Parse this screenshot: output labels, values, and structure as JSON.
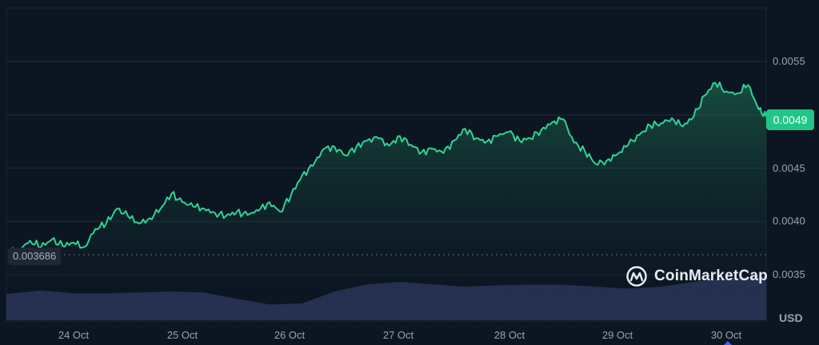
{
  "chart_data": {
    "type": "area",
    "title": "",
    "xlabel": "",
    "ylabel": "USD",
    "currency": "USD",
    "ylim": [
      0.0032,
      0.006
    ],
    "grid": true,
    "legend": "none",
    "y_ticks": [
      "0.0055",
      "0.0045",
      "0.0040",
      "0.0035"
    ],
    "x_ticks": [
      "24 Oct",
      "25 Oct",
      "26 Oct",
      "27 Oct",
      "28 Oct",
      "29 Oct",
      "30 Oct"
    ],
    "current_price": "0.0049",
    "baseline_price": "0.003686",
    "colors": {
      "line": "#2fd393",
      "price_tag": "#21c587",
      "volume": "#2a3458",
      "background": "#0c1522",
      "grid": "#222c3a"
    },
    "series": [
      {
        "name": "Price",
        "x_days_from_24oct": [
          -0.6,
          -0.5,
          -0.4,
          -0.3,
          -0.2,
          -0.1,
          0.0,
          0.1,
          0.2,
          0.3,
          0.4,
          0.5,
          0.6,
          0.7,
          0.8,
          0.9,
          1.0,
          1.1,
          1.2,
          1.3,
          1.4,
          1.5,
          1.6,
          1.7,
          1.8,
          1.9,
          2.0,
          2.1,
          2.2,
          2.3,
          2.4,
          2.5,
          2.6,
          2.7,
          2.8,
          2.9,
          3.0,
          3.1,
          3.2,
          3.3,
          3.4,
          3.5,
          3.6,
          3.7,
          3.8,
          3.9,
          4.0,
          4.1,
          4.2,
          4.3,
          4.4,
          4.5,
          4.6,
          4.7,
          4.8,
          4.9,
          5.0,
          5.1,
          5.2,
          5.3,
          5.4,
          5.5,
          5.6,
          5.7,
          5.8,
          5.9,
          6.0,
          6.1,
          6.2,
          6.3,
          6.4
        ],
        "values": [
          0.0037,
          0.00374,
          0.00382,
          0.00376,
          0.00383,
          0.00377,
          0.0038,
          0.00376,
          0.00393,
          0.00398,
          0.00412,
          0.00405,
          0.00398,
          0.00403,
          0.00412,
          0.00426,
          0.00418,
          0.00414,
          0.00412,
          0.00408,
          0.00405,
          0.00409,
          0.00406,
          0.0041,
          0.00418,
          0.00409,
          0.00425,
          0.00443,
          0.00452,
          0.00468,
          0.0047,
          0.00462,
          0.0047,
          0.00476,
          0.00478,
          0.00471,
          0.0048,
          0.00472,
          0.00465,
          0.00468,
          0.00464,
          0.00476,
          0.00487,
          0.00478,
          0.00475,
          0.0048,
          0.00484,
          0.00476,
          0.00478,
          0.00486,
          0.00493,
          0.00496,
          0.00474,
          0.00466,
          0.00454,
          0.00457,
          0.00463,
          0.00472,
          0.00481,
          0.0049,
          0.00492,
          0.00497,
          0.00489,
          0.00498,
          0.00518,
          0.0053,
          0.00522,
          0.0052,
          0.00528,
          0.00505,
          0.00498
        ]
      },
      {
        "name": "Volume",
        "x_days_from_24oct": [
          -0.6,
          -0.3,
          0.0,
          0.3,
          0.6,
          0.9,
          1.2,
          1.5,
          1.8,
          2.1,
          2.4,
          2.7,
          3.0,
          3.3,
          3.6,
          3.9,
          4.2,
          4.5,
          4.8,
          5.1,
          5.4,
          5.7,
          6.0,
          6.3,
          6.45
        ],
        "relative_height": [
          0.55,
          0.62,
          0.56,
          0.56,
          0.58,
          0.6,
          0.58,
          0.45,
          0.33,
          0.35,
          0.6,
          0.75,
          0.8,
          0.75,
          0.7,
          0.73,
          0.74,
          0.74,
          0.7,
          0.66,
          0.7,
          0.8,
          0.88,
          0.92,
          0.92
        ]
      }
    ]
  },
  "axis": {
    "y_labels": [
      "0.0055",
      "0.0045",
      "0.0040",
      "0.0035"
    ],
    "x_labels": [
      "24 Oct",
      "25 Oct",
      "26 Oct",
      "27 Oct",
      "28 Oct",
      "29 Oct",
      "30 Oct"
    ],
    "currency": "USD"
  },
  "price_tag": "0.0049",
  "baseline_tag": "0.003686",
  "watermark": {
    "brand": "CoinMarketCap",
    "icon": "coinmarketcap-logo-icon"
  }
}
